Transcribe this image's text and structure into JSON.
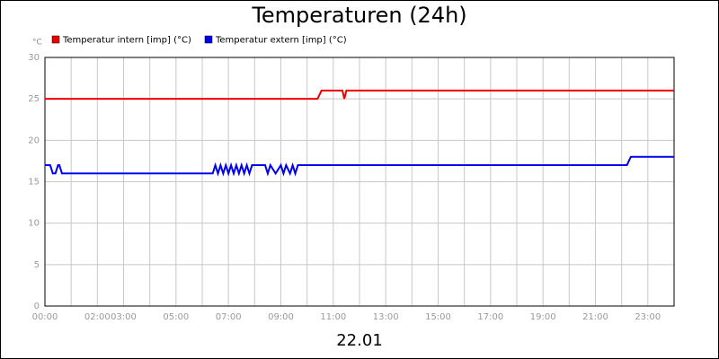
{
  "chart_data": {
    "type": "line",
    "title": "Temperaturen (24h)",
    "y_unit": "°C",
    "x_label": "22.01",
    "xlim": [
      0,
      24
    ],
    "ylim": [
      0,
      30
    ],
    "yticks": [
      0,
      5,
      10,
      15,
      20,
      25,
      30
    ],
    "grid": true,
    "xticks": [
      {
        "value": 0,
        "label": "00:00"
      },
      {
        "value": 1,
        "label": null
      },
      {
        "value": 2,
        "label": "02:00"
      },
      {
        "value": 3,
        "label": "03:00"
      },
      {
        "value": 4,
        "label": null
      },
      {
        "value": 5,
        "label": "05:00"
      },
      {
        "value": 6,
        "label": null
      },
      {
        "value": 7,
        "label": "07:00"
      },
      {
        "value": 8,
        "label": null
      },
      {
        "value": 9,
        "label": "09:00"
      },
      {
        "value": 10,
        "label": null
      },
      {
        "value": 11,
        "label": "11:00"
      },
      {
        "value": 12,
        "label": null
      },
      {
        "value": 13,
        "label": "13:00"
      },
      {
        "value": 14,
        "label": null
      },
      {
        "value": 15,
        "label": "15:00"
      },
      {
        "value": 16,
        "label": null
      },
      {
        "value": 17,
        "label": "17:00"
      },
      {
        "value": 18,
        "label": null
      },
      {
        "value": 19,
        "label": "19:00"
      },
      {
        "value": 20,
        "label": null
      },
      {
        "value": 21,
        "label": "21:00"
      },
      {
        "value": 22,
        "label": null
      },
      {
        "value": 23,
        "label": "23:00"
      },
      {
        "value": 24,
        "label": null
      }
    ],
    "series": [
      {
        "name": "Temperatur intern [imp] (°C)",
        "color": "#ee0000",
        "x": [
          0,
          10.4,
          10.55,
          11.35,
          11.42,
          11.5,
          24
        ],
        "values": [
          25,
          25,
          26,
          26,
          25,
          26,
          26
        ]
      },
      {
        "name": "Temperatur extern [imp] (°C)",
        "color": "#0000ee",
        "x": [
          0,
          0.2,
          0.3,
          0.4,
          0.5,
          0.55,
          0.65,
          6.4,
          6.5,
          6.6,
          6.7,
          6.8,
          6.9,
          7.0,
          7.1,
          7.2,
          7.3,
          7.4,
          7.5,
          7.6,
          7.7,
          7.8,
          7.9,
          8.4,
          8.5,
          8.6,
          8.8,
          9.0,
          9.1,
          9.2,
          9.35,
          9.45,
          9.55,
          9.65,
          22.2,
          22.35,
          24
        ],
        "values": [
          17,
          17,
          16,
          16,
          17,
          17,
          16,
          16,
          17,
          16,
          17,
          16,
          17,
          16,
          17,
          16,
          17,
          16,
          17,
          16,
          17,
          16,
          17,
          17,
          16,
          17,
          16,
          17,
          16,
          17,
          16,
          17,
          16,
          17,
          17,
          18,
          18
        ]
      }
    ]
  }
}
